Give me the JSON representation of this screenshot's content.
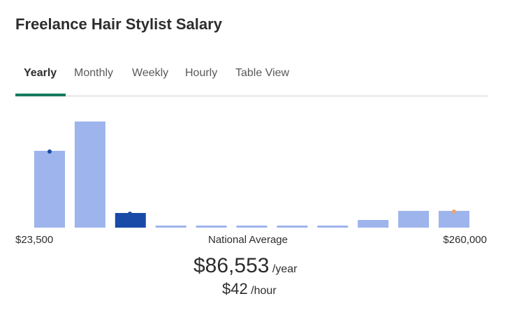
{
  "chart_data": {
    "type": "histogram",
    "title": "Freelance Hair Stylist Salary",
    "tabs": [
      "Yearly",
      "Monthly",
      "Weekly",
      "Hourly",
      "Table View"
    ],
    "values": [
      110,
      152,
      21,
      3,
      3,
      3,
      3,
      3,
      11,
      24,
      24
    ],
    "colors": [
      "#9db4ec",
      "#9db4ec",
      "#1a4aa8",
      "#9db4ec",
      "#9db4ec",
      "#9db4ec",
      "#9db4ec",
      "#9db4ec",
      "#9db4ec",
      "#9db4ec",
      "#9db4ec"
    ],
    "range_labels": [
      "$23,500",
      "$260,000"
    ],
    "average": {
      "label": "National Average",
      "yearly": "$86,553",
      "yearly_unit": "/year",
      "hourly": "$42",
      "hourly_unit": "/hour"
    }
  }
}
